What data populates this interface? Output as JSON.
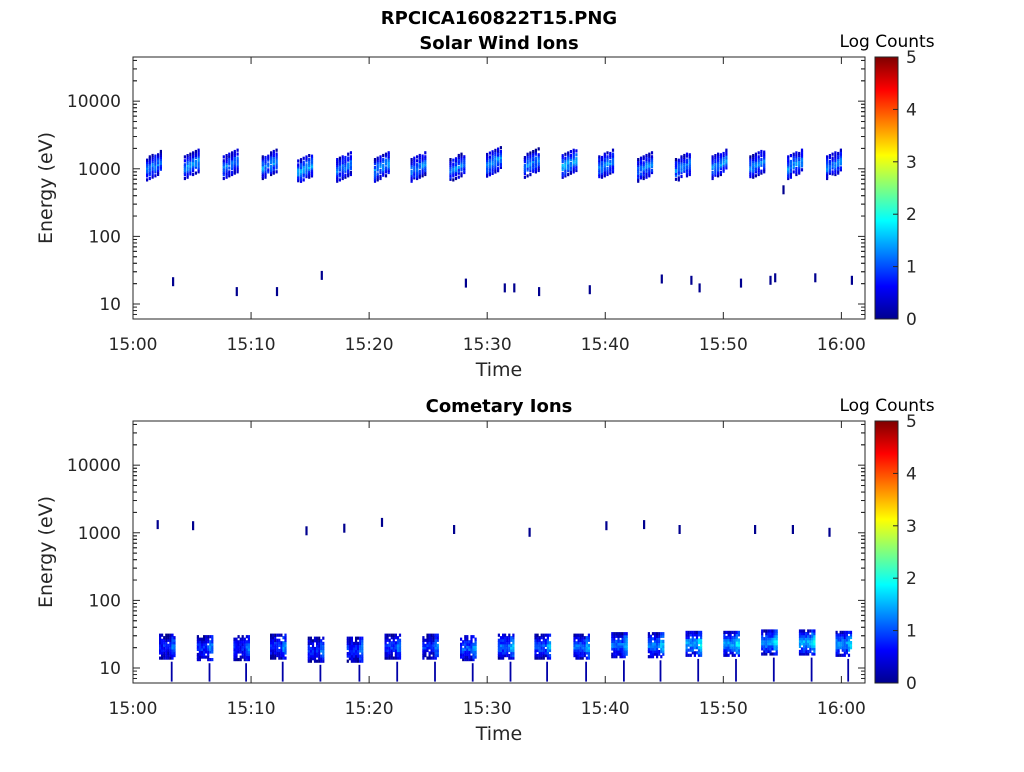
{
  "figure_title": "RPCICA160822T15.PNG",
  "chart_data": [
    {
      "type": "heatmap",
      "title": "Solar Wind Ions",
      "xlabel": "Time",
      "ylabel": "Energy (eV)",
      "x_ticks": [
        "15:00",
        "15:10",
        "15:20",
        "15:30",
        "15:40",
        "15:50",
        "16:00"
      ],
      "xlim": [
        "15:00",
        "16:02"
      ],
      "y_scale": "log",
      "y_ticks": [
        "10",
        "100",
        "1000",
        "10000"
      ],
      "ylim": [
        6,
        45000
      ],
      "colorbar": {
        "label": "Log Counts",
        "ticks": [
          "0",
          "1",
          "2",
          "3",
          "4",
          "5"
        ],
        "range": [
          0,
          5
        ],
        "colormap": "jet"
      },
      "blobs": [
        {
          "t": 1.8,
          "e_center": 1100,
          "log_counts": 1.3
        },
        {
          "t": 5.0,
          "e_center": 1150,
          "log_counts": 1.4
        },
        {
          "t": 8.3,
          "e_center": 1150,
          "log_counts": 1.3
        },
        {
          "t": 11.6,
          "e_center": 1150,
          "log_counts": 1.4
        },
        {
          "t": 14.6,
          "e_center": 1000,
          "log_counts": 1.5
        },
        {
          "t": 17.9,
          "e_center": 1050,
          "log_counts": 1.3
        },
        {
          "t": 21.1,
          "e_center": 1050,
          "log_counts": 1.4
        },
        {
          "t": 24.2,
          "e_center": 1050,
          "log_counts": 1.3
        },
        {
          "t": 27.5,
          "e_center": 1050,
          "log_counts": 1.3
        },
        {
          "t": 30.6,
          "e_center": 1250,
          "log_counts": 1.4
        },
        {
          "t": 33.8,
          "e_center": 1200,
          "log_counts": 1.3
        },
        {
          "t": 37.0,
          "e_center": 1200,
          "log_counts": 1.5
        },
        {
          "t": 40.1,
          "e_center": 1150,
          "log_counts": 1.4
        },
        {
          "t": 43.4,
          "e_center": 1050,
          "log_counts": 1.3
        },
        {
          "t": 46.6,
          "e_center": 1050,
          "log_counts": 1.3
        },
        {
          "t": 49.7,
          "e_center": 1150,
          "log_counts": 1.4
        },
        {
          "t": 52.9,
          "e_center": 1150,
          "log_counts": 1.3
        },
        {
          "t": 56.1,
          "e_center": 1150,
          "log_counts": 1.4
        },
        {
          "t": 59.4,
          "e_center": 1150,
          "log_counts": 1.3
        }
      ],
      "sparse_hits": [
        {
          "t": 3.3,
          "e": 21
        },
        {
          "t": 8.7,
          "e": 15
        },
        {
          "t": 12.1,
          "e": 15
        },
        {
          "t": 15.9,
          "e": 26
        },
        {
          "t": 28.1,
          "e": 20
        },
        {
          "t": 31.4,
          "e": 17
        },
        {
          "t": 32.2,
          "e": 17
        },
        {
          "t": 34.3,
          "e": 15
        },
        {
          "t": 38.6,
          "e": 16
        },
        {
          "t": 44.7,
          "e": 23
        },
        {
          "t": 47.2,
          "e": 22
        },
        {
          "t": 47.9,
          "e": 17
        },
        {
          "t": 51.4,
          "e": 20
        },
        {
          "t": 53.9,
          "e": 22
        },
        {
          "t": 54.3,
          "e": 24
        },
        {
          "t": 57.7,
          "e": 24
        },
        {
          "t": 60.8,
          "e": 22
        },
        {
          "t": 55.0,
          "e": 480
        }
      ]
    },
    {
      "type": "heatmap",
      "title": "Cometary Ions",
      "xlabel": "Time",
      "ylabel": "Energy (eV)",
      "x_ticks": [
        "15:00",
        "15:10",
        "15:20",
        "15:30",
        "15:40",
        "15:50",
        "16:00"
      ],
      "xlim": [
        "15:00",
        "16:02"
      ],
      "y_scale": "log",
      "y_ticks": [
        "10",
        "100",
        "1000",
        "10000"
      ],
      "ylim": [
        6,
        45000
      ],
      "colorbar": {
        "label": "Log Counts",
        "ticks": [
          "0",
          "1",
          "2",
          "3",
          "4",
          "5"
        ],
        "range": [
          0,
          5
        ],
        "colormap": "jet"
      },
      "blobs": [
        {
          "t": 2.9,
          "e_center": 20,
          "log_counts": 0.8
        },
        {
          "t": 6.1,
          "e_center": 19,
          "log_counts": 0.9
        },
        {
          "t": 9.2,
          "e_center": 19,
          "log_counts": 0.8
        },
        {
          "t": 12.3,
          "e_center": 20,
          "log_counts": 0.9
        },
        {
          "t": 15.5,
          "e_center": 18,
          "log_counts": 0.8
        },
        {
          "t": 18.8,
          "e_center": 18,
          "log_counts": 0.9
        },
        {
          "t": 22.0,
          "e_center": 20,
          "log_counts": 0.9
        },
        {
          "t": 25.2,
          "e_center": 20,
          "log_counts": 0.9
        },
        {
          "t": 28.4,
          "e_center": 19,
          "log_counts": 1.1
        },
        {
          "t": 31.6,
          "e_center": 20,
          "log_counts": 1.2
        },
        {
          "t": 34.7,
          "e_center": 20,
          "log_counts": 1.1
        },
        {
          "t": 38.0,
          "e_center": 20,
          "log_counts": 1.2
        },
        {
          "t": 41.2,
          "e_center": 21,
          "log_counts": 1.2
        },
        {
          "t": 44.3,
          "e_center": 21,
          "log_counts": 1.3
        },
        {
          "t": 47.5,
          "e_center": 22,
          "log_counts": 1.5
        },
        {
          "t": 50.7,
          "e_center": 22,
          "log_counts": 1.5
        },
        {
          "t": 53.9,
          "e_center": 23,
          "log_counts": 1.5
        },
        {
          "t": 57.1,
          "e_center": 23,
          "log_counts": 1.6
        },
        {
          "t": 60.2,
          "e_center": 22,
          "log_counts": 1.4
        }
      ],
      "sparse_hits": [
        {
          "t": 2.0,
          "e": 1300
        },
        {
          "t": 5.0,
          "e": 1250
        },
        {
          "t": 14.6,
          "e": 1050
        },
        {
          "t": 17.8,
          "e": 1150
        },
        {
          "t": 21.0,
          "e": 1400
        },
        {
          "t": 27.1,
          "e": 1100
        },
        {
          "t": 33.5,
          "e": 1000
        },
        {
          "t": 40.0,
          "e": 1250
        },
        {
          "t": 43.2,
          "e": 1300
        },
        {
          "t": 46.2,
          "e": 1100
        },
        {
          "t": 52.6,
          "e": 1100
        },
        {
          "t": 55.8,
          "e": 1100
        },
        {
          "t": 58.9,
          "e": 1000
        }
      ]
    }
  ]
}
